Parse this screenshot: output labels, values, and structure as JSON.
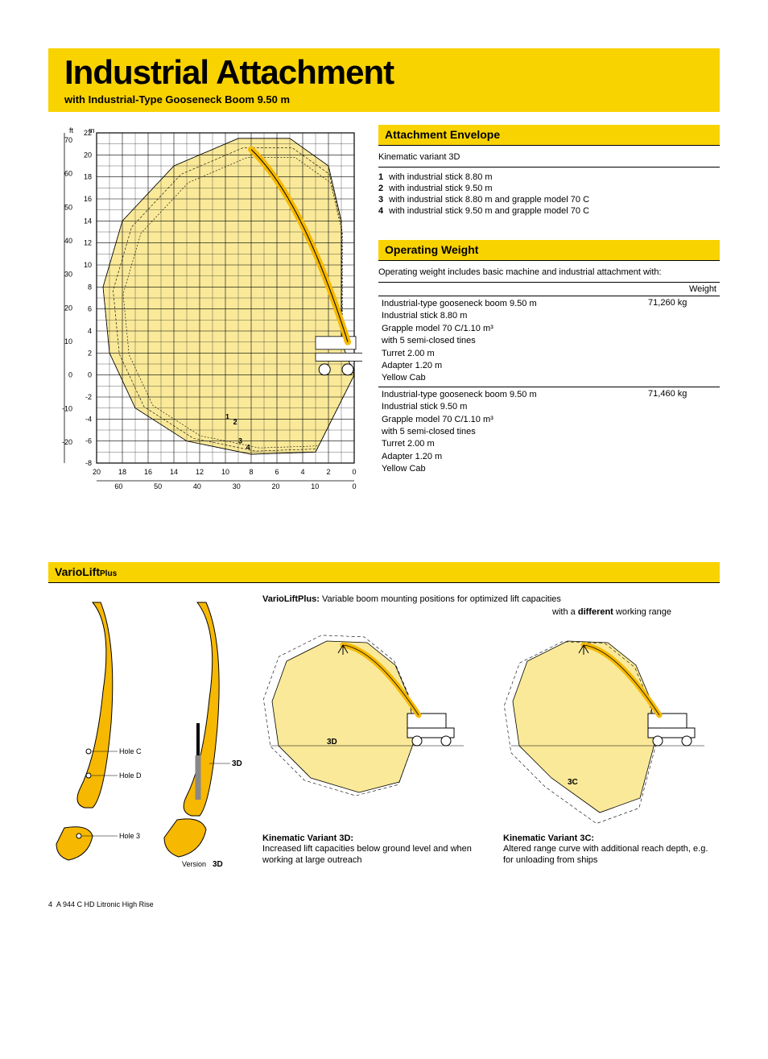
{
  "colors": {
    "accent": "#f9d300",
    "boom": "#f6b800",
    "envelope_fill": "#f9e999",
    "grid": "#000000",
    "text": "#000000"
  },
  "title": "Industrial Attachment",
  "subtitle": "with Industrial-Type Gooseneck Boom 9.50 m",
  "envelope": {
    "heading": "Attachment Envelope",
    "intro": "Kinematic variant 3D",
    "variants": [
      {
        "n": "1",
        "t": "with industrial stick 8.80 m"
      },
      {
        "n": "2",
        "t": "with industrial stick 9.50 m"
      },
      {
        "n": "3",
        "t": "with industrial stick 8.80 m and grapple model 70 C"
      },
      {
        "n": "4",
        "t": "with industrial stick 9.50 m and grapple model 70 C"
      }
    ]
  },
  "operating": {
    "heading": "Operating Weight",
    "intro": "Operating weight includes basic machine and industrial attachment with:",
    "weight_col": "Weight",
    "rows": [
      {
        "lines": [
          "Industrial-type gooseneck boom 9.50 m",
          "Industrial stick 8.80 m",
          "Grapple model 70 C/1.10 m³",
          "with 5 semi-closed tines",
          "Turret 2.00 m",
          "Adapter 1.20 m",
          "Yellow Cab"
        ],
        "weight": "71,260 kg"
      },
      {
        "lines": [
          "Industrial-type gooseneck boom 9.50 m",
          "Industrial stick 9.50 m",
          "Grapple model 70 C/1.10 m³",
          "with 5 semi-closed tines",
          "Turret 2.00 m",
          "Adapter 1.20 m",
          "Yellow Cab"
        ],
        "weight": "71,460 kg"
      }
    ]
  },
  "chart": {
    "y_ft": [
      70,
      60,
      50,
      40,
      30,
      20,
      10,
      0,
      -10,
      -20
    ],
    "y_m": [
      22,
      20,
      18,
      16,
      14,
      12,
      10,
      8,
      6,
      4,
      2,
      0,
      -2,
      -4,
      -6,
      -8
    ],
    "x_m": [
      20,
      18,
      16,
      14,
      12,
      10,
      8,
      6,
      4,
      2,
      0
    ],
    "x_ft": [
      60,
      50,
      40,
      30,
      20,
      10,
      0
    ],
    "y_m_range": [
      -8,
      22
    ],
    "x_m_range": [
      0,
      20
    ],
    "ft_label": "ft",
    "m_label": "m",
    "m_label2": "m",
    "ft_label2": "ft",
    "curve_labels": [
      "1",
      "2",
      "3",
      "4"
    ]
  },
  "variolift": {
    "heading_main": "VarioLift",
    "heading_plus": "Plus",
    "intro_bold": "VarioLiftPlus:",
    "intro_rest": " Variable boom mounting positions for optimized lift capacities",
    "sub": "with a ",
    "sub_bold": "different",
    "sub_rest": " working range",
    "holes": [
      "Hole C",
      "Hole D",
      "Hole 3"
    ],
    "version_label": "Version ",
    "version_bold": "3D",
    "boom_label": "3D",
    "env_label_3d": "3D",
    "env_label_3c": "3C",
    "variant3d": {
      "title": "Kinematic Variant 3D:",
      "desc": "Increased lift capacities below ground level and when working at large outreach"
    },
    "variant3c": {
      "title": "Kinematic Variant 3C:",
      "desc": "Altered range curve with additional reach depth, e.g. for unloading from ships"
    }
  },
  "footer": {
    "page": "4",
    "model": "A 944 C HD Litronic High Rise"
  }
}
